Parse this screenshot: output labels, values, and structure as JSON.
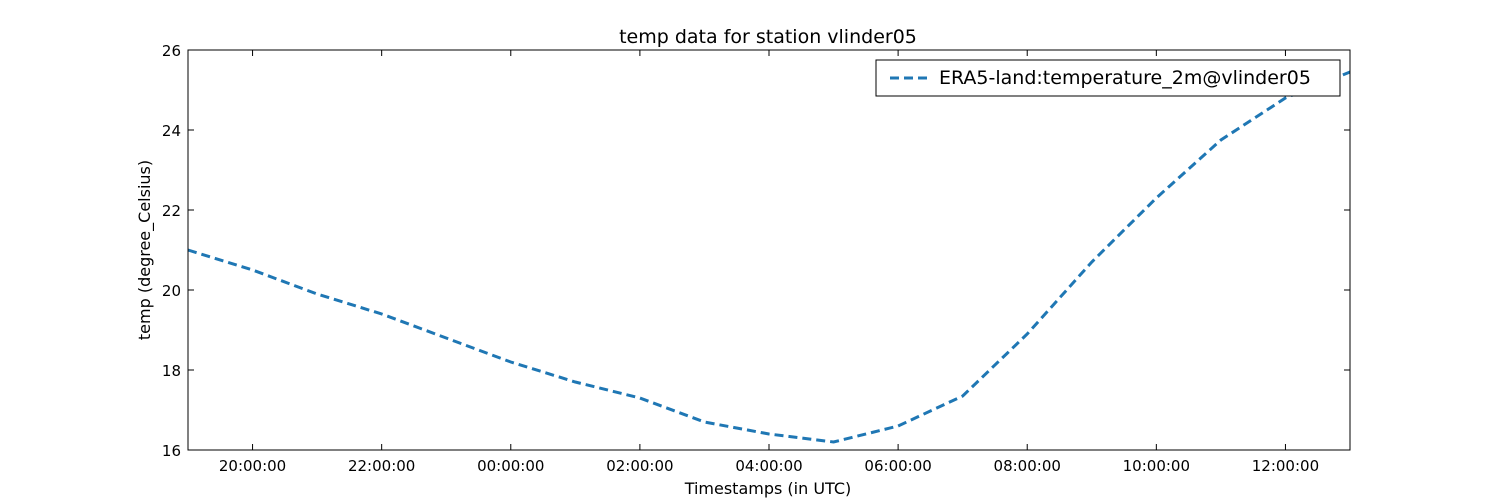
{
  "chart_data": {
    "type": "line",
    "title": "temp data for station vlinder05",
    "xlabel": "Timestamps (in UTC)",
    "ylabel": "temp (degree_Celsius)",
    "xlim": [
      "19:00:00",
      "13:00:00 (+1 day)"
    ],
    "ylim": [
      16,
      26
    ],
    "x_ticks": [
      "20:00:00",
      "22:00:00",
      "00:00:00",
      "02:00:00",
      "04:00:00",
      "06:00:00",
      "08:00:00",
      "10:00:00",
      "12:00:00"
    ],
    "y_ticks": [
      "16",
      "18",
      "20",
      "22",
      "24",
      "26"
    ],
    "grid": false,
    "legend_position": "top-right",
    "series": [
      {
        "name": "ERA5-land:temperature_2m@vlinder05",
        "color": "#1f77b4",
        "line_style": "dashed",
        "x": [
          "19:00:00",
          "20:00:00",
          "21:00:00",
          "22:00:00",
          "23:00:00",
          "00:00:00",
          "01:00:00",
          "02:00:00",
          "03:00:00",
          "04:00:00",
          "05:00:00",
          "06:00:00",
          "07:00:00",
          "08:00:00",
          "09:00:00",
          "10:00:00",
          "11:00:00",
          "12:00:00",
          "13:00:00"
        ],
        "values": [
          21.0,
          20.5,
          19.9,
          19.4,
          18.8,
          18.2,
          17.7,
          17.3,
          16.7,
          16.4,
          16.2,
          16.6,
          17.35,
          18.9,
          20.7,
          22.3,
          23.75,
          24.8,
          25.45
        ]
      }
    ]
  }
}
